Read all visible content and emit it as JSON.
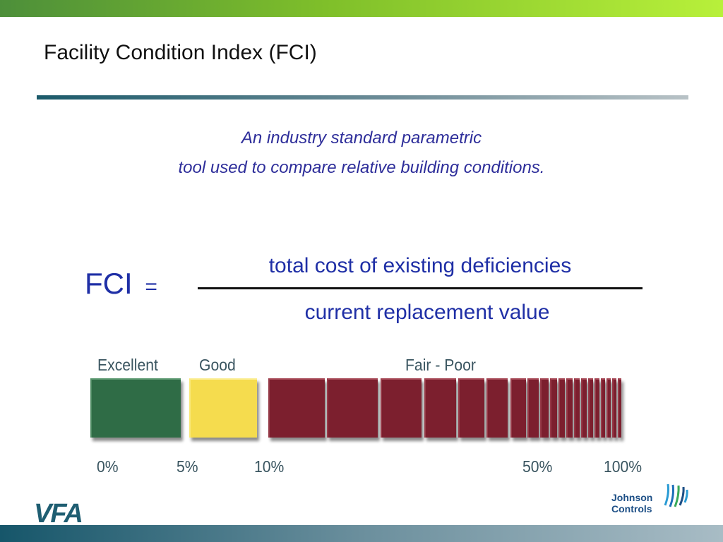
{
  "slide": {
    "title": "Facility Condition Index (FCI)",
    "subtitle_line1": "An industry standard parametric",
    "subtitle_line2": "tool used to compare relative building conditions."
  },
  "formula": {
    "lhs": "FCI",
    "equals": "=",
    "numerator": "total cost of existing deficiencies",
    "denominator": "current replacement value"
  },
  "scale": {
    "categories": [
      {
        "label": "Excellent",
        "color": "#2f6c46"
      },
      {
        "label": "Good",
        "color": "#f5dc4e"
      },
      {
        "label": "Fair - Poor",
        "color": "#7c1f2e"
      }
    ],
    "ticks": [
      "0%",
      "5%",
      "10%",
      "50%",
      "100%"
    ]
  },
  "logos": {
    "left": "VFA",
    "right_line1": "Johnson",
    "right_line2": "Controls"
  },
  "colors": {
    "title_text": "#111111",
    "formula_text": "#1f2fa6",
    "subtitle_text": "#2e2e9a",
    "top_band": "#7fbf2a",
    "bottom_band": "#16566a"
  }
}
